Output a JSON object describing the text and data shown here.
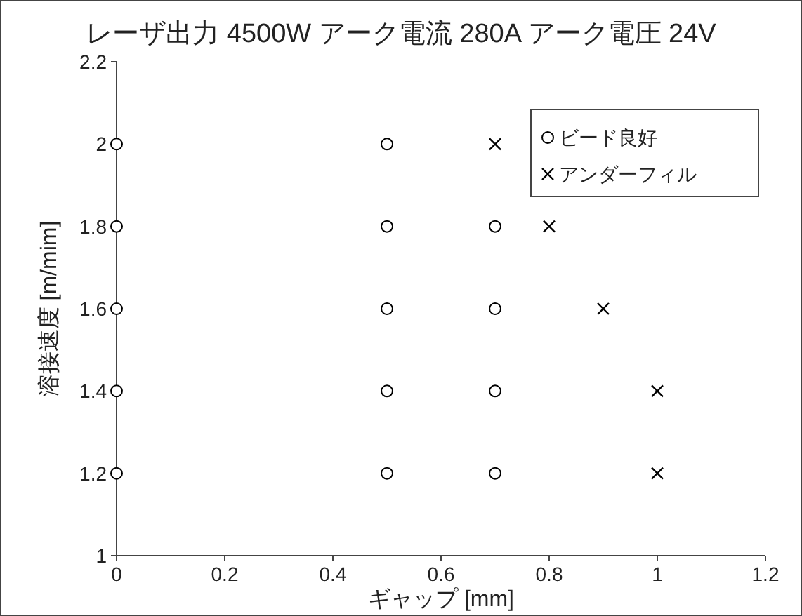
{
  "chart_data": {
    "type": "scatter",
    "title": "レーザ出力 4500W  アーク電流 280A  アーク電圧 24V",
    "xlabel": "ギャップ [mm]",
    "ylabel": "溶接速度 [m/mim]",
    "xlim": [
      0,
      1.2
    ],
    "xticks": [
      0,
      0.2,
      0.4,
      0.6,
      0.8,
      1,
      1.2
    ],
    "ylim": [
      1,
      2.2
    ],
    "yticks": [
      1,
      1.2,
      1.4,
      1.6,
      1.8,
      2,
      2.2
    ],
    "grid": false,
    "legend": "top right",
    "series": [
      {
        "name": "ビード良好",
        "color": "#000000",
        "marker": "circle",
        "x": [
          0,
          0,
          0,
          0,
          0,
          0.5,
          0.5,
          0.5,
          0.5,
          0.5,
          0.7,
          0.7,
          0.7,
          0.7
        ],
        "values": [
          1.2,
          1.4,
          1.6,
          1.8,
          2,
          1.2,
          1.4,
          1.6,
          1.8,
          2,
          1.2,
          1.4,
          1.6,
          1.8
        ]
      },
      {
        "name": "アンダーフィル",
        "color": "#000000",
        "marker": "cross",
        "x": [
          0.7,
          0.8,
          0.9,
          1,
          1
        ],
        "values": [
          2,
          1.8,
          1.6,
          1.4,
          1.2
        ]
      }
    ]
  }
}
